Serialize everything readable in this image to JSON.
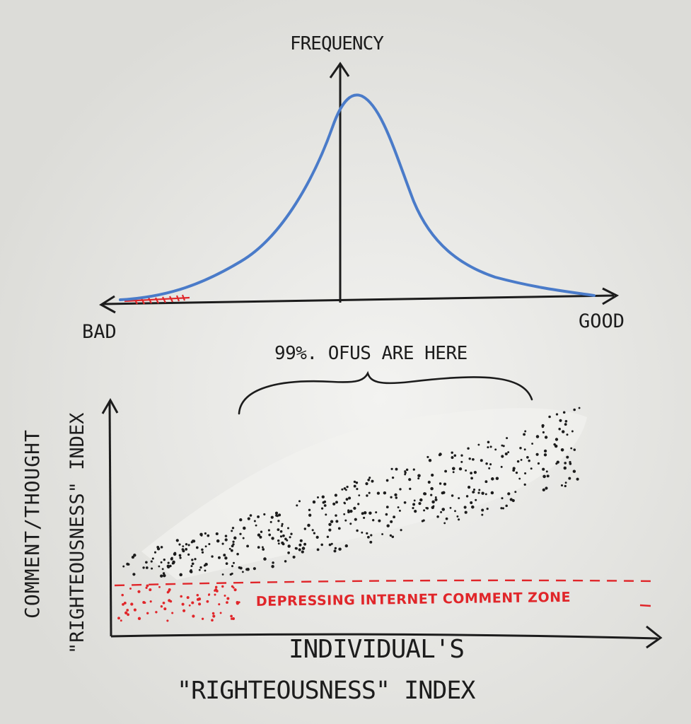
{
  "colors": {
    "board": "#e6e6e3",
    "ink": "#1c1c1c",
    "curve": "#4a7bc9",
    "red": "#e0262a"
  },
  "top_chart": {
    "y_label": "FREQUENCY",
    "x_left_label": "BAD",
    "x_right_label": "GOOD"
  },
  "annotation": {
    "brace_label": "99%. OFUS ARE HERE"
  },
  "bottom_chart": {
    "y_label_line1": "COMMENT/THOUGHT",
    "y_label_line2": "\"RIGHTEOUSNESS\" INDEX",
    "x_label_line1": "INDIVIDUAL'S",
    "x_label_line2": "\"RIGHTEOUSNESS\" INDEX",
    "zone_label": "DEPRESSING INTERNET COMMENT ZONE"
  }
}
